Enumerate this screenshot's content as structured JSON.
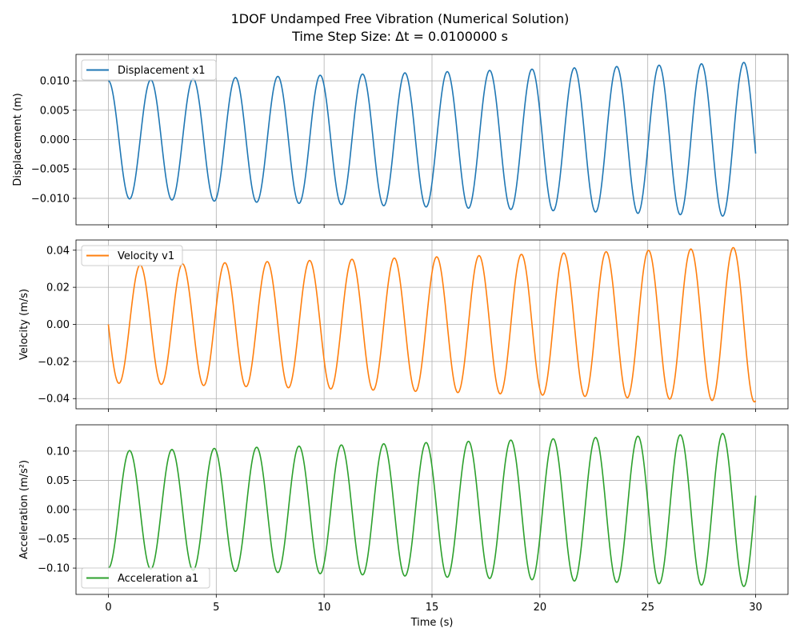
{
  "figure": {
    "title_line1": "1DOF Undamped Free Vibration (Numerical Solution)",
    "title_line2": "Time Step Size: Δt = 0.0100000 s"
  },
  "chart_data": [
    {
      "type": "line",
      "ylabel": "Displacement (m)",
      "xlabel": "",
      "xlim": [
        -1.5,
        31.5
      ],
      "ylim": [
        -0.0145,
        0.0145
      ],
      "xticks": [
        0,
        5,
        10,
        15,
        20,
        25,
        30
      ],
      "xtick_labels": [],
      "yticks": [
        -0.01,
        -0.005,
        0.0,
        0.005,
        0.01
      ],
      "ytick_labels": [
        "−0.010",
        "−0.005",
        "0.000",
        "0.005",
        "0.010"
      ],
      "grid": true,
      "legend_position": "upper-left",
      "series": [
        {
          "name": "Displacement x1",
          "color": "#1f77b4",
          "kind": "cos",
          "initial_amplitude": 0.01,
          "final_amplitude": 0.0132,
          "period": 1.9635,
          "scale": 1.0
        }
      ]
    },
    {
      "type": "line",
      "ylabel": "Velocity (m/s)",
      "xlabel": "",
      "xlim": [
        -1.5,
        31.5
      ],
      "ylim": [
        -0.0455,
        0.0455
      ],
      "xticks": [
        0,
        5,
        10,
        15,
        20,
        25,
        30
      ],
      "xtick_labels": [],
      "yticks": [
        -0.04,
        -0.02,
        0.0,
        0.02,
        0.04
      ],
      "ytick_labels": [
        "−0.04",
        "−0.02",
        "0.00",
        "0.02",
        "0.04"
      ],
      "grid": true,
      "legend_position": "upper-left",
      "series": [
        {
          "name": "Velocity v1",
          "color": "#ff7f0e",
          "kind": "neg-sin",
          "initial_amplitude": 0.0316,
          "final_amplitude": 0.0418,
          "period": 1.9635,
          "scale": 1.0
        }
      ]
    },
    {
      "type": "line",
      "ylabel": "Acceleration (m/s²)",
      "xlabel": "Time (s)",
      "xlim": [
        -1.5,
        31.5
      ],
      "ylim": [
        -0.145,
        0.145
      ],
      "xticks": [
        0,
        5,
        10,
        15,
        20,
        25,
        30
      ],
      "xtick_labels": [
        "0",
        "5",
        "10",
        "15",
        "20",
        "25",
        "30"
      ],
      "yticks": [
        -0.1,
        -0.05,
        0.0,
        0.05,
        0.1
      ],
      "ytick_labels": [
        "−0.10",
        "−0.05",
        "0.00",
        "0.05",
        "0.10"
      ],
      "grid": true,
      "legend_position": "lower-left",
      "series": [
        {
          "name": "Acceleration a1",
          "color": "#2ca02c",
          "kind": "neg-cos",
          "initial_amplitude": 0.1,
          "final_amplitude": 0.132,
          "period": 1.9635,
          "scale": 1.0
        }
      ]
    }
  ]
}
